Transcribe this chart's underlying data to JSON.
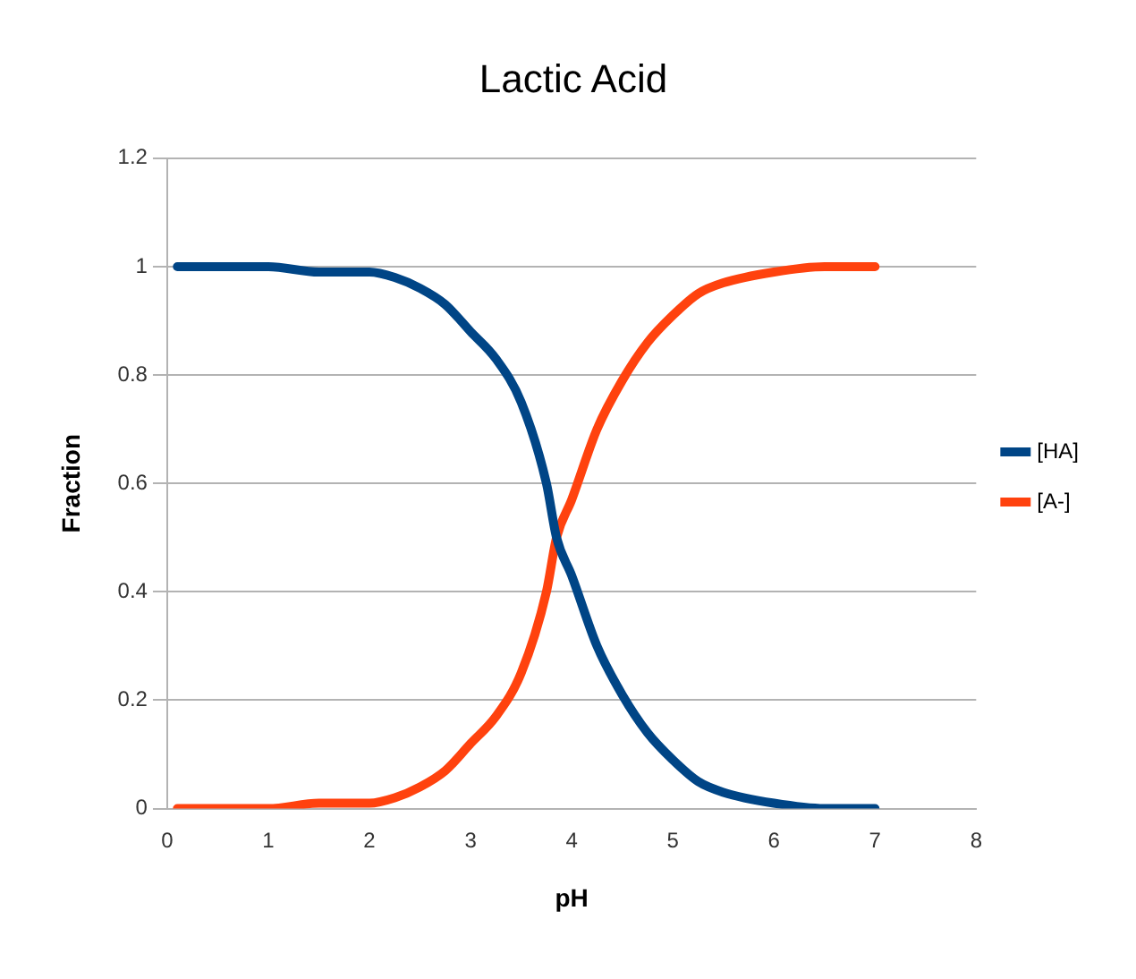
{
  "chart_data": {
    "type": "line",
    "title": "Lactic Acid",
    "xlabel": "pH",
    "ylabel": "Fraction",
    "x": [
      0.1,
      0.5,
      1,
      1.5,
      2,
      2.25,
      2.5,
      2.75,
      3,
      3.25,
      3.5,
      3.75,
      3.85,
      4,
      4.25,
      4.5,
      4.75,
      5,
      5.25,
      5.5,
      6,
      6.5,
      7
    ],
    "series": [
      {
        "name": "[HA]",
        "color": "#004586",
        "values": [
          1,
          1,
          1,
          0.99,
          0.99,
          0.98,
          0.96,
          0.93,
          0.88,
          0.83,
          0.75,
          0.6,
          0.5,
          0.43,
          0.3,
          0.21,
          0.14,
          0.09,
          0.05,
          0.03,
          0.01,
          0,
          0
        ]
      },
      {
        "name": "[A-]",
        "color": "#ff420e",
        "values": [
          0,
          0,
          0,
          0.01,
          0.01,
          0.02,
          0.04,
          0.07,
          0.12,
          0.17,
          0.25,
          0.4,
          0.5,
          0.57,
          0.7,
          0.79,
          0.86,
          0.91,
          0.95,
          0.97,
          0.99,
          1,
          1
        ]
      }
    ],
    "xlim": [
      0,
      8
    ],
    "xticks": [
      0,
      1,
      2,
      3,
      4,
      5,
      6,
      7,
      8
    ],
    "ylim": [
      0,
      1.2
    ],
    "yticks": [
      0,
      0.2,
      0.4,
      0.6,
      0.8,
      1,
      1.2
    ],
    "grid": "y",
    "legend": "right",
    "marker": "none",
    "line_style": "solid"
  }
}
